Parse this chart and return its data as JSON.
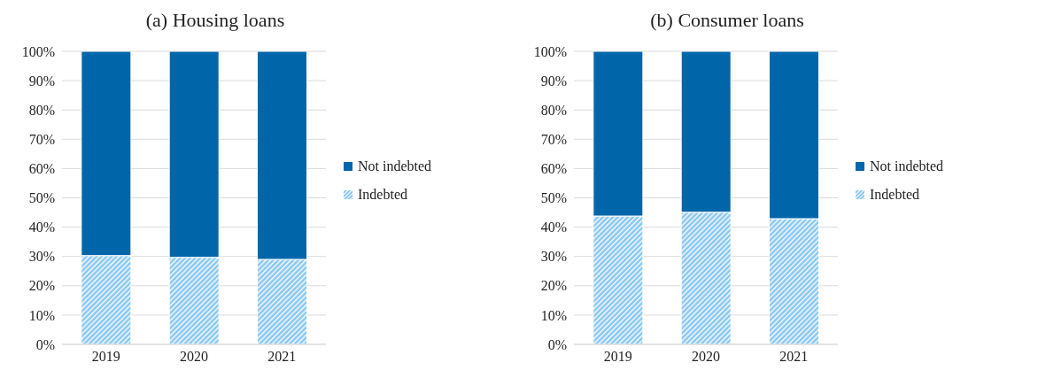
{
  "chart_data": [
    {
      "type": "bar",
      "title": "(a) Housing loans",
      "categories": [
        "2019",
        "2020",
        "2021"
      ],
      "stacked": true,
      "series": [
        {
          "name": "Indebted",
          "color": "#8cc8f2",
          "values": [
            30.3,
            29.7,
            29.0
          ]
        },
        {
          "name": "Not indebted",
          "color": "#0066aa",
          "values": [
            69.7,
            70.3,
            71.0
          ]
        }
      ],
      "ylim": [
        0,
        100
      ],
      "yticks": [
        {
          "value": 0,
          "label": "0%"
        },
        {
          "value": 10,
          "label": "10%"
        },
        {
          "value": 20,
          "label": "20%"
        },
        {
          "value": 30,
          "label": "30%"
        },
        {
          "value": 40,
          "label": "40%"
        },
        {
          "value": 50,
          "label": "50%"
        },
        {
          "value": 60,
          "label": "60%"
        },
        {
          "value": 70,
          "label": "70%"
        },
        {
          "value": 80,
          "label": "80%"
        },
        {
          "value": 90,
          "label": "90%"
        },
        {
          "value": 100,
          "label": "100%"
        }
      ],
      "grid": "y",
      "legend": "right"
    },
    {
      "type": "bar",
      "title": "(b) Consumer loans",
      "categories": [
        "2019",
        "2020",
        "2021"
      ],
      "stacked": true,
      "series": [
        {
          "name": "Indebted",
          "color": "#8cc8f2",
          "values": [
            43.8,
            45.1,
            42.9
          ]
        },
        {
          "name": "Not indebted",
          "color": "#0066aa",
          "values": [
            56.2,
            54.9,
            57.1
          ]
        }
      ],
      "ylim": [
        0,
        100
      ],
      "yticks": [
        {
          "value": 0,
          "label": "0%"
        },
        {
          "value": 10,
          "label": "10%"
        },
        {
          "value": 20,
          "label": "20%"
        },
        {
          "value": 30,
          "label": "30%"
        },
        {
          "value": 40,
          "label": "40%"
        },
        {
          "value": 50,
          "label": "50%"
        },
        {
          "value": 60,
          "label": "60%"
        },
        {
          "value": 70,
          "label": "70%"
        },
        {
          "value": 80,
          "label": "80%"
        },
        {
          "value": 90,
          "label": "90%"
        },
        {
          "value": 100,
          "label": "100%"
        }
      ],
      "grid": "y",
      "legend": "right"
    }
  ]
}
